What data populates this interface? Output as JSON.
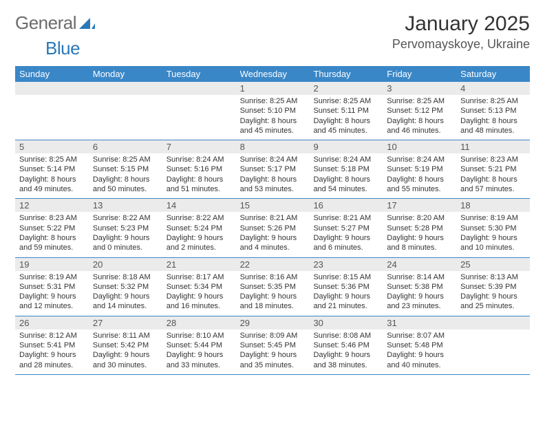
{
  "logo": {
    "text1": "General",
    "text2": "Blue"
  },
  "title": "January 2025",
  "location": "Pervomayskoye, Ukraine",
  "day_names": [
    "Sunday",
    "Monday",
    "Tuesday",
    "Wednesday",
    "Thursday",
    "Friday",
    "Saturday"
  ],
  "colors": {
    "header_bg": "#3a87c7",
    "header_text": "#ffffff",
    "daynum_bg": "#ebebeb",
    "border": "#3a87c7",
    "logo_gray": "#6b6b6b",
    "logo_blue": "#2a78b8"
  },
  "weeks": [
    {
      "days": [
        {
          "num": "",
          "sunrise": "",
          "sunset": "",
          "daylight": ""
        },
        {
          "num": "",
          "sunrise": "",
          "sunset": "",
          "daylight": ""
        },
        {
          "num": "",
          "sunrise": "",
          "sunset": "",
          "daylight": ""
        },
        {
          "num": "1",
          "sunrise": "Sunrise: 8:25 AM",
          "sunset": "Sunset: 5:10 PM",
          "daylight": "Daylight: 8 hours and 45 minutes."
        },
        {
          "num": "2",
          "sunrise": "Sunrise: 8:25 AM",
          "sunset": "Sunset: 5:11 PM",
          "daylight": "Daylight: 8 hours and 45 minutes."
        },
        {
          "num": "3",
          "sunrise": "Sunrise: 8:25 AM",
          "sunset": "Sunset: 5:12 PM",
          "daylight": "Daylight: 8 hours and 46 minutes."
        },
        {
          "num": "4",
          "sunrise": "Sunrise: 8:25 AM",
          "sunset": "Sunset: 5:13 PM",
          "daylight": "Daylight: 8 hours and 48 minutes."
        }
      ]
    },
    {
      "days": [
        {
          "num": "5",
          "sunrise": "Sunrise: 8:25 AM",
          "sunset": "Sunset: 5:14 PM",
          "daylight": "Daylight: 8 hours and 49 minutes."
        },
        {
          "num": "6",
          "sunrise": "Sunrise: 8:25 AM",
          "sunset": "Sunset: 5:15 PM",
          "daylight": "Daylight: 8 hours and 50 minutes."
        },
        {
          "num": "7",
          "sunrise": "Sunrise: 8:24 AM",
          "sunset": "Sunset: 5:16 PM",
          "daylight": "Daylight: 8 hours and 51 minutes."
        },
        {
          "num": "8",
          "sunrise": "Sunrise: 8:24 AM",
          "sunset": "Sunset: 5:17 PM",
          "daylight": "Daylight: 8 hours and 53 minutes."
        },
        {
          "num": "9",
          "sunrise": "Sunrise: 8:24 AM",
          "sunset": "Sunset: 5:18 PM",
          "daylight": "Daylight: 8 hours and 54 minutes."
        },
        {
          "num": "10",
          "sunrise": "Sunrise: 8:24 AM",
          "sunset": "Sunset: 5:19 PM",
          "daylight": "Daylight: 8 hours and 55 minutes."
        },
        {
          "num": "11",
          "sunrise": "Sunrise: 8:23 AM",
          "sunset": "Sunset: 5:21 PM",
          "daylight": "Daylight: 8 hours and 57 minutes."
        }
      ]
    },
    {
      "days": [
        {
          "num": "12",
          "sunrise": "Sunrise: 8:23 AM",
          "sunset": "Sunset: 5:22 PM",
          "daylight": "Daylight: 8 hours and 59 minutes."
        },
        {
          "num": "13",
          "sunrise": "Sunrise: 8:22 AM",
          "sunset": "Sunset: 5:23 PM",
          "daylight": "Daylight: 9 hours and 0 minutes."
        },
        {
          "num": "14",
          "sunrise": "Sunrise: 8:22 AM",
          "sunset": "Sunset: 5:24 PM",
          "daylight": "Daylight: 9 hours and 2 minutes."
        },
        {
          "num": "15",
          "sunrise": "Sunrise: 8:21 AM",
          "sunset": "Sunset: 5:26 PM",
          "daylight": "Daylight: 9 hours and 4 minutes."
        },
        {
          "num": "16",
          "sunrise": "Sunrise: 8:21 AM",
          "sunset": "Sunset: 5:27 PM",
          "daylight": "Daylight: 9 hours and 6 minutes."
        },
        {
          "num": "17",
          "sunrise": "Sunrise: 8:20 AM",
          "sunset": "Sunset: 5:28 PM",
          "daylight": "Daylight: 9 hours and 8 minutes."
        },
        {
          "num": "18",
          "sunrise": "Sunrise: 8:19 AM",
          "sunset": "Sunset: 5:30 PM",
          "daylight": "Daylight: 9 hours and 10 minutes."
        }
      ]
    },
    {
      "days": [
        {
          "num": "19",
          "sunrise": "Sunrise: 8:19 AM",
          "sunset": "Sunset: 5:31 PM",
          "daylight": "Daylight: 9 hours and 12 minutes."
        },
        {
          "num": "20",
          "sunrise": "Sunrise: 8:18 AM",
          "sunset": "Sunset: 5:32 PM",
          "daylight": "Daylight: 9 hours and 14 minutes."
        },
        {
          "num": "21",
          "sunrise": "Sunrise: 8:17 AM",
          "sunset": "Sunset: 5:34 PM",
          "daylight": "Daylight: 9 hours and 16 minutes."
        },
        {
          "num": "22",
          "sunrise": "Sunrise: 8:16 AM",
          "sunset": "Sunset: 5:35 PM",
          "daylight": "Daylight: 9 hours and 18 minutes."
        },
        {
          "num": "23",
          "sunrise": "Sunrise: 8:15 AM",
          "sunset": "Sunset: 5:36 PM",
          "daylight": "Daylight: 9 hours and 21 minutes."
        },
        {
          "num": "24",
          "sunrise": "Sunrise: 8:14 AM",
          "sunset": "Sunset: 5:38 PM",
          "daylight": "Daylight: 9 hours and 23 minutes."
        },
        {
          "num": "25",
          "sunrise": "Sunrise: 8:13 AM",
          "sunset": "Sunset: 5:39 PM",
          "daylight": "Daylight: 9 hours and 25 minutes."
        }
      ]
    },
    {
      "days": [
        {
          "num": "26",
          "sunrise": "Sunrise: 8:12 AM",
          "sunset": "Sunset: 5:41 PM",
          "daylight": "Daylight: 9 hours and 28 minutes."
        },
        {
          "num": "27",
          "sunrise": "Sunrise: 8:11 AM",
          "sunset": "Sunset: 5:42 PM",
          "daylight": "Daylight: 9 hours and 30 minutes."
        },
        {
          "num": "28",
          "sunrise": "Sunrise: 8:10 AM",
          "sunset": "Sunset: 5:44 PM",
          "daylight": "Daylight: 9 hours and 33 minutes."
        },
        {
          "num": "29",
          "sunrise": "Sunrise: 8:09 AM",
          "sunset": "Sunset: 5:45 PM",
          "daylight": "Daylight: 9 hours and 35 minutes."
        },
        {
          "num": "30",
          "sunrise": "Sunrise: 8:08 AM",
          "sunset": "Sunset: 5:46 PM",
          "daylight": "Daylight: 9 hours and 38 minutes."
        },
        {
          "num": "31",
          "sunrise": "Sunrise: 8:07 AM",
          "sunset": "Sunset: 5:48 PM",
          "daylight": "Daylight: 9 hours and 40 minutes."
        },
        {
          "num": "",
          "sunrise": "",
          "sunset": "",
          "daylight": ""
        }
      ]
    }
  ]
}
